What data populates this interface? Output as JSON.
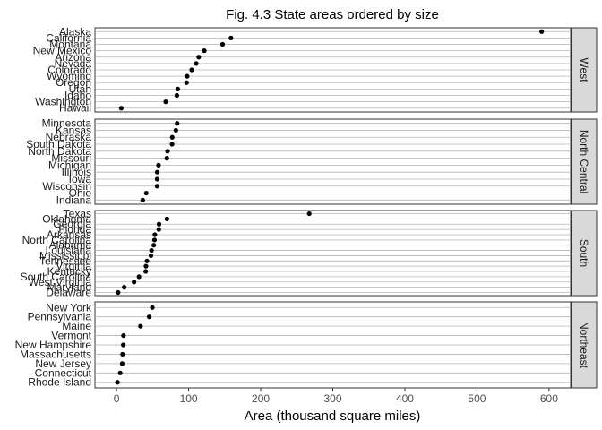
{
  "chart_data": {
    "type": "scatter",
    "title": "Fig. 4.3 State areas ordered by size",
    "xlabel": "Area (thousand square miles)",
    "ylabel": "",
    "xlim": [
      -30,
      630
    ],
    "xticks": [
      0,
      100,
      200,
      300,
      400,
      500,
      600
    ],
    "xtick_labels": [
      "0",
      "100",
      "200",
      "300",
      "400",
      "500",
      "600"
    ],
    "grid": true,
    "facets": [
      {
        "name": "West",
        "states": [
          {
            "state": "Alaska",
            "area": 589.8
          },
          {
            "state": "California",
            "area": 158.7
          },
          {
            "state": "Montana",
            "area": 147.1
          },
          {
            "state": "New Mexico",
            "area": 121.7
          },
          {
            "state": "Arizona",
            "area": 114.0
          },
          {
            "state": "Nevada",
            "area": 110.5
          },
          {
            "state": "Colorado",
            "area": 104.2
          },
          {
            "state": "Wyoming",
            "area": 97.9
          },
          {
            "state": "Oregon",
            "area": 97.1
          },
          {
            "state": "Utah",
            "area": 84.9
          },
          {
            "state": "Idaho",
            "area": 83.6
          },
          {
            "state": "Washington",
            "area": 68.2
          },
          {
            "state": "Hawaii",
            "area": 6.5
          }
        ]
      },
      {
        "name": "North Central",
        "states": [
          {
            "state": "Minnesota",
            "area": 84.1
          },
          {
            "state": "Kansas",
            "area": 82.3
          },
          {
            "state": "Nebraska",
            "area": 77.2
          },
          {
            "state": "South Dakota",
            "area": 77.0
          },
          {
            "state": "North Dakota",
            "area": 70.7
          },
          {
            "state": "Missouri",
            "area": 69.7
          },
          {
            "state": "Michigan",
            "area": 58.2
          },
          {
            "state": "Illinois",
            "area": 56.4
          },
          {
            "state": "Iowa",
            "area": 56.3
          },
          {
            "state": "Wisconsin",
            "area": 56.2
          },
          {
            "state": "Ohio",
            "area": 41.2
          },
          {
            "state": "Indiana",
            "area": 36.3
          }
        ]
      },
      {
        "name": "South",
        "states": [
          {
            "state": "Texas",
            "area": 267.3
          },
          {
            "state": "Oklahoma",
            "area": 69.9
          },
          {
            "state": "Georgia",
            "area": 58.9
          },
          {
            "state": "Florida",
            "area": 58.6
          },
          {
            "state": "Arkansas",
            "area": 53.1
          },
          {
            "state": "North Carolina",
            "area": 52.6
          },
          {
            "state": "Alabama",
            "area": 51.6
          },
          {
            "state": "Louisiana",
            "area": 48.5
          },
          {
            "state": "Mississippi",
            "area": 47.7
          },
          {
            "state": "Tennessee",
            "area": 42.2
          },
          {
            "state": "Virginia",
            "area": 40.8
          },
          {
            "state": "Kentucky",
            "area": 40.4
          },
          {
            "state": "South Carolina",
            "area": 31.1
          },
          {
            "state": "West Virginia",
            "area": 24.2
          },
          {
            "state": "Maryland",
            "area": 10.6
          },
          {
            "state": "Delaware",
            "area": 2.1
          }
        ]
      },
      {
        "name": "Northeast",
        "states": [
          {
            "state": "New York",
            "area": 49.6
          },
          {
            "state": "Pennsylvania",
            "area": 45.3
          },
          {
            "state": "Maine",
            "area": 33.2
          },
          {
            "state": "Vermont",
            "area": 9.6
          },
          {
            "state": "New Hampshire",
            "area": 9.3
          },
          {
            "state": "Massachusetts",
            "area": 8.3
          },
          {
            "state": "New Jersey",
            "area": 7.8
          },
          {
            "state": "Connecticut",
            "area": 5.0
          },
          {
            "state": "Rhode Island",
            "area": 1.2
          }
        ]
      }
    ]
  }
}
